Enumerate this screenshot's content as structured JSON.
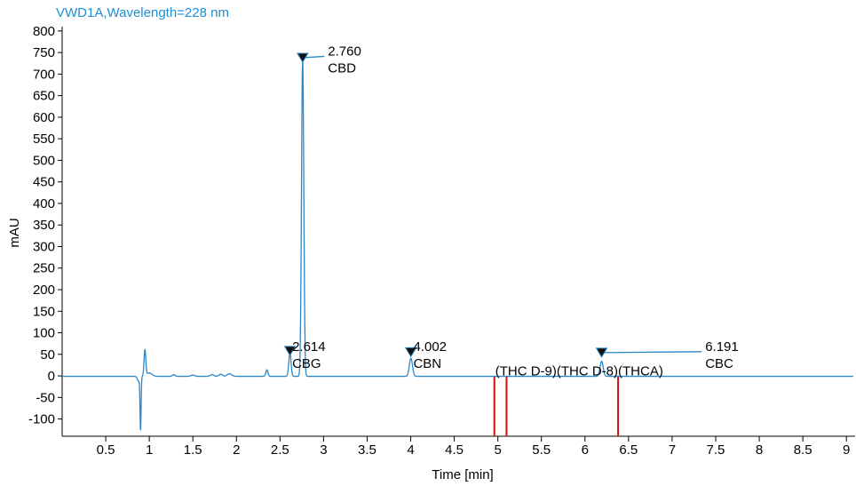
{
  "chart_data": {
    "type": "line",
    "title": "VWD1A,Wavelength=228 nm",
    "xlabel": "Time [min]",
    "ylabel": "mAU",
    "xlim": [
      0,
      9.1
    ],
    "ylim": [
      -140,
      810
    ],
    "x_ticks": [
      0.5,
      1,
      1.5,
      2,
      2.5,
      3,
      3.5,
      4,
      4.5,
      5,
      5.5,
      6,
      6.5,
      7,
      7.5,
      8,
      8.5,
      9
    ],
    "x_tick_labels": [
      "0.5",
      "1",
      "1.5",
      "2",
      "2.5",
      "3",
      "3.5",
      "4",
      "4.5",
      "5",
      "5.5",
      "6",
      "6.5",
      "7",
      "7.5",
      "8",
      "8.5",
      "9"
    ],
    "y_ticks": [
      -100,
      -50,
      0,
      50,
      100,
      150,
      200,
      250,
      300,
      350,
      400,
      450,
      500,
      550,
      600,
      650,
      700,
      750,
      800
    ],
    "y_tick_labels": [
      "-100",
      "-50",
      "0",
      "50",
      "100",
      "150",
      "200",
      "250",
      "300",
      "350",
      "400",
      "450",
      "500",
      "550",
      "600",
      "650",
      "700",
      "750",
      "800"
    ],
    "trace_color": "#2a87c9",
    "baseline": -1,
    "features": [
      {
        "type": "gauss",
        "center": 0.88,
        "height": -12,
        "width": 0.015
      },
      {
        "type": "gauss",
        "center": 0.9,
        "height": -120,
        "width": 0.006
      },
      {
        "type": "gauss",
        "center": 0.95,
        "height": 60,
        "width": 0.01
      },
      {
        "type": "gauss",
        "center": 1.0,
        "height": 8,
        "width": 0.03
      },
      {
        "type": "gauss",
        "center": 1.28,
        "height": 4,
        "width": 0.015
      },
      {
        "type": "gauss",
        "center": 1.5,
        "height": 3,
        "width": 0.02
      },
      {
        "type": "gauss",
        "center": 1.72,
        "height": 4,
        "width": 0.02
      },
      {
        "type": "gauss",
        "center": 1.82,
        "height": 5,
        "width": 0.02
      },
      {
        "type": "gauss",
        "center": 1.92,
        "height": 6,
        "width": 0.025
      },
      {
        "type": "gauss",
        "center": 2.35,
        "height": 15,
        "width": 0.012
      },
      {
        "type": "gauss",
        "center": 2.614,
        "height": 54,
        "width": 0.013
      },
      {
        "type": "gauss",
        "center": 2.76,
        "height": 735,
        "width": 0.013
      },
      {
        "type": "gauss",
        "center": 4.002,
        "height": 42,
        "width": 0.018
      },
      {
        "type": "gauss",
        "center": 6.191,
        "height": 35,
        "width": 0.018
      }
    ],
    "peaks": [
      {
        "rt": "2.614",
        "name": "CBG",
        "x": 2.614,
        "y": 58
      },
      {
        "rt": "2.760",
        "name": "CBD",
        "x": 2.76,
        "y": 738
      },
      {
        "rt": "4.002",
        "name": "CBN",
        "x": 4.002,
        "y": 55
      },
      {
        "rt": "6.191",
        "name": "CBC",
        "x": 6.191,
        "y": 54
      }
    ],
    "expected_markers": [
      {
        "name": "(THC D-9)",
        "x": 4.96
      },
      {
        "name": "(THC D-8)",
        "x": 5.1
      },
      {
        "name": "(THCA)",
        "x": 6.38
      }
    ],
    "marker_color": "#d01010"
  }
}
